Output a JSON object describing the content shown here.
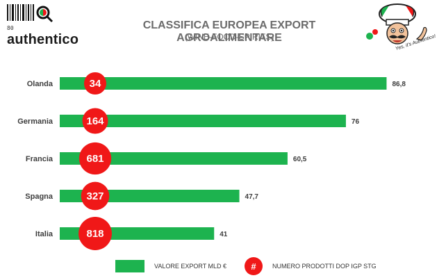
{
  "logo": {
    "number": "80",
    "wordmark": "authentico"
  },
  "mascot": {
    "tagline": "Yes, it's Authentico!"
  },
  "colors": {
    "bar": "#1db34f",
    "circle": "#f01818",
    "label": "#3d3d3d"
  },
  "chart_data": {
    "type": "bar",
    "orientation": "horizontal",
    "title": "CLASSIFICA EUROPEA EXPORT AGROALIMENTARE",
    "subtitle": "(WINE-FOOD-SPIRITS)",
    "categories": [
      "Olanda",
      "Germania",
      "Francia",
      "Spagna",
      "Italia"
    ],
    "series": [
      {
        "name": "VALORE EXPORT MLD €",
        "values": [
          86.8,
          76,
          60.5,
          47.7,
          41
        ],
        "value_labels": [
          "86,8",
          "76",
          "60,5",
          "47,7",
          "41"
        ]
      },
      {
        "name": "NUMERO PRODOTTI DOP IGP STG",
        "values": [
          34,
          164,
          681,
          327,
          818
        ],
        "marker": "circle"
      }
    ],
    "legend": {
      "position": "bottom",
      "circle_symbol": "#"
    },
    "grid": false
  }
}
